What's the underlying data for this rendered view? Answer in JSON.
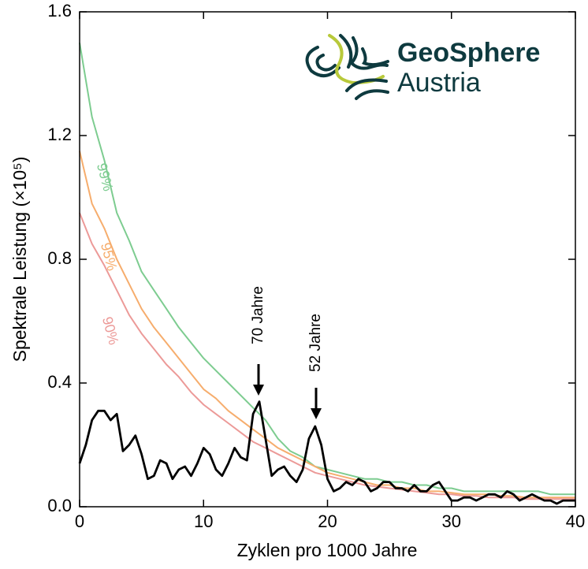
{
  "chart_data": {
    "type": "line",
    "xlabel": "Zyklen pro 1000 Jahre",
    "ylabel": "Spektrale Leistung (×10⁵)",
    "xlim": [
      0,
      40
    ],
    "ylim": [
      0,
      1.6
    ],
    "xticks": [
      0,
      10,
      20,
      30,
      40
    ],
    "yticks": [
      {
        "value": 0,
        "label": "0.0"
      },
      0.4,
      0.8,
      1.2,
      1.6
    ],
    "annotations": [
      "70 Jahre",
      "52 Jahre"
    ],
    "logo": {
      "line1": "GeoSphere",
      "line2": "Austria"
    },
    "series": [
      {
        "name": "99%",
        "color": "#7dcc90",
        "x": [
          0,
          1,
          2,
          3,
          4,
          5,
          6,
          7,
          8,
          9,
          10,
          11,
          12,
          13,
          14,
          15,
          16,
          17,
          18,
          19,
          20,
          21,
          22,
          23,
          24,
          25,
          26,
          27,
          28,
          29,
          30,
          31,
          32,
          33,
          34,
          35,
          36,
          37,
          38,
          39,
          40
        ],
        "values": [
          1.5,
          1.26,
          1.12,
          0.95,
          0.86,
          0.76,
          0.7,
          0.64,
          0.58,
          0.53,
          0.48,
          0.44,
          0.4,
          0.36,
          0.32,
          0.28,
          0.22,
          0.18,
          0.16,
          0.13,
          0.12,
          0.11,
          0.1,
          0.09,
          0.09,
          0.08,
          0.08,
          0.07,
          0.07,
          0.06,
          0.06,
          0.05,
          0.05,
          0.05,
          0.05,
          0.05,
          0.05,
          0.05,
          0.04,
          0.04,
          0.04
        ]
      },
      {
        "name": "95%",
        "color": "#f6ad6d",
        "x": [
          0,
          1,
          2,
          3,
          4,
          5,
          6,
          7,
          8,
          9,
          10,
          11,
          12,
          13,
          14,
          15,
          16,
          17,
          18,
          19,
          20,
          21,
          22,
          23,
          24,
          25,
          26,
          27,
          28,
          29,
          30,
          31,
          32,
          33,
          34,
          35,
          36,
          37,
          38,
          39,
          40
        ],
        "values": [
          1.15,
          0.98,
          0.9,
          0.8,
          0.72,
          0.64,
          0.58,
          0.53,
          0.48,
          0.43,
          0.38,
          0.35,
          0.31,
          0.28,
          0.25,
          0.22,
          0.19,
          0.17,
          0.15,
          0.13,
          0.11,
          0.1,
          0.09,
          0.08,
          0.07,
          0.07,
          0.06,
          0.06,
          0.05,
          0.05,
          0.045,
          0.04,
          0.04,
          0.04,
          0.035,
          0.035,
          0.03,
          0.03,
          0.03,
          0.03,
          0.03
        ]
      },
      {
        "name": "90%",
        "color": "#ec9a98",
        "x": [
          0,
          1,
          2,
          3,
          4,
          5,
          6,
          7,
          8,
          9,
          10,
          11,
          12,
          13,
          14,
          15,
          16,
          17,
          18,
          19,
          20,
          21,
          22,
          23,
          24,
          25,
          26,
          27,
          28,
          29,
          30,
          31,
          32,
          33,
          34,
          35,
          36,
          37,
          38,
          39,
          40
        ],
        "values": [
          0.95,
          0.85,
          0.78,
          0.7,
          0.62,
          0.56,
          0.51,
          0.46,
          0.42,
          0.37,
          0.33,
          0.3,
          0.27,
          0.24,
          0.21,
          0.19,
          0.17,
          0.15,
          0.13,
          0.11,
          0.1,
          0.09,
          0.08,
          0.07,
          0.065,
          0.06,
          0.055,
          0.05,
          0.045,
          0.04,
          0.04,
          0.035,
          0.035,
          0.03,
          0.03,
          0.03,
          0.025,
          0.025,
          0.025,
          0.025,
          0.025
        ]
      },
      {
        "color": "#000000",
        "x": [
          0,
          0.5,
          1,
          1.5,
          2,
          2.5,
          3,
          3.5,
          4,
          4.5,
          5,
          5.5,
          6,
          6.5,
          7,
          7.5,
          8,
          8.5,
          9,
          9.5,
          10,
          10.5,
          11,
          11.5,
          12,
          12.5,
          13,
          13.5,
          14,
          14.5,
          15,
          15.5,
          16,
          16.5,
          17,
          17.5,
          18,
          18.5,
          19,
          19.5,
          20,
          20.5,
          21,
          21.5,
          22,
          22.5,
          23,
          23.5,
          24,
          24.5,
          25,
          25.5,
          26,
          26.5,
          27,
          27.5,
          28,
          28.5,
          29,
          29.5,
          30,
          30.5,
          31,
          31.5,
          32,
          32.5,
          33,
          33.5,
          34,
          34.5,
          35,
          35.5,
          36,
          36.5,
          37,
          37.5,
          38,
          38.5,
          39,
          39.5,
          40
        ],
        "values": [
          0.14,
          0.2,
          0.28,
          0.31,
          0.31,
          0.28,
          0.3,
          0.18,
          0.2,
          0.23,
          0.17,
          0.09,
          0.1,
          0.15,
          0.14,
          0.09,
          0.12,
          0.13,
          0.1,
          0.14,
          0.19,
          0.17,
          0.12,
          0.1,
          0.14,
          0.19,
          0.16,
          0.15,
          0.3,
          0.34,
          0.22,
          0.1,
          0.12,
          0.13,
          0.1,
          0.08,
          0.12,
          0.22,
          0.26,
          0.2,
          0.09,
          0.05,
          0.06,
          0.08,
          0.07,
          0.09,
          0.08,
          0.05,
          0.06,
          0.08,
          0.08,
          0.06,
          0.06,
          0.05,
          0.07,
          0.05,
          0.05,
          0.07,
          0.08,
          0.05,
          0.02,
          0.02,
          0.03,
          0.03,
          0.02,
          0.03,
          0.04,
          0.04,
          0.03,
          0.05,
          0.04,
          0.02,
          0.03,
          0.04,
          0.03,
          0.02,
          0.02,
          0.01,
          0.02,
          0.02,
          0.02
        ]
      }
    ]
  }
}
